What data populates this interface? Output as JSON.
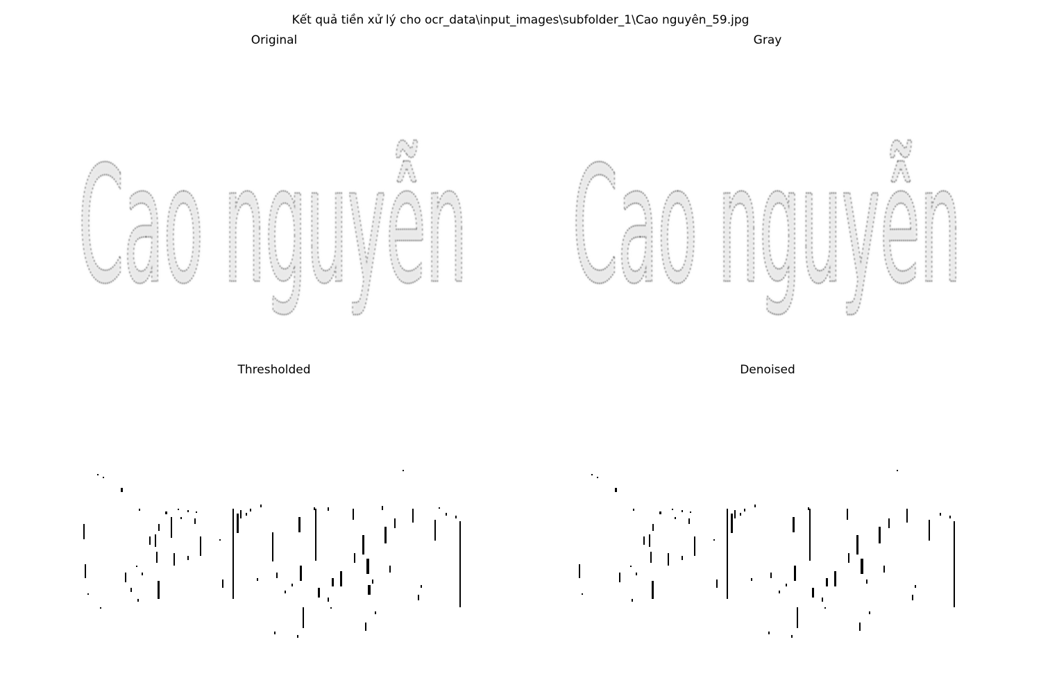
{
  "figure": {
    "suptitle": "Kết quả tiền xử lý cho ocr_data\\input_images\\subfolder_1\\Cao nguyên_59.jpg"
  },
  "panels": [
    {
      "title": "Original",
      "style": "grayscale-soft"
    },
    {
      "title": "Gray",
      "style": "grayscale-soft"
    },
    {
      "title": "Thresholded",
      "style": "binary-sparse"
    },
    {
      "title": "Denoised",
      "style": "binary-sparse"
    }
  ],
  "word_image": {
    "text": "Cao nguyễn"
  },
  "colors": {
    "background": "#ffffff",
    "ink": "#000000",
    "soft_ink": "#3a3a3a",
    "halo": "#d8d8d8"
  }
}
